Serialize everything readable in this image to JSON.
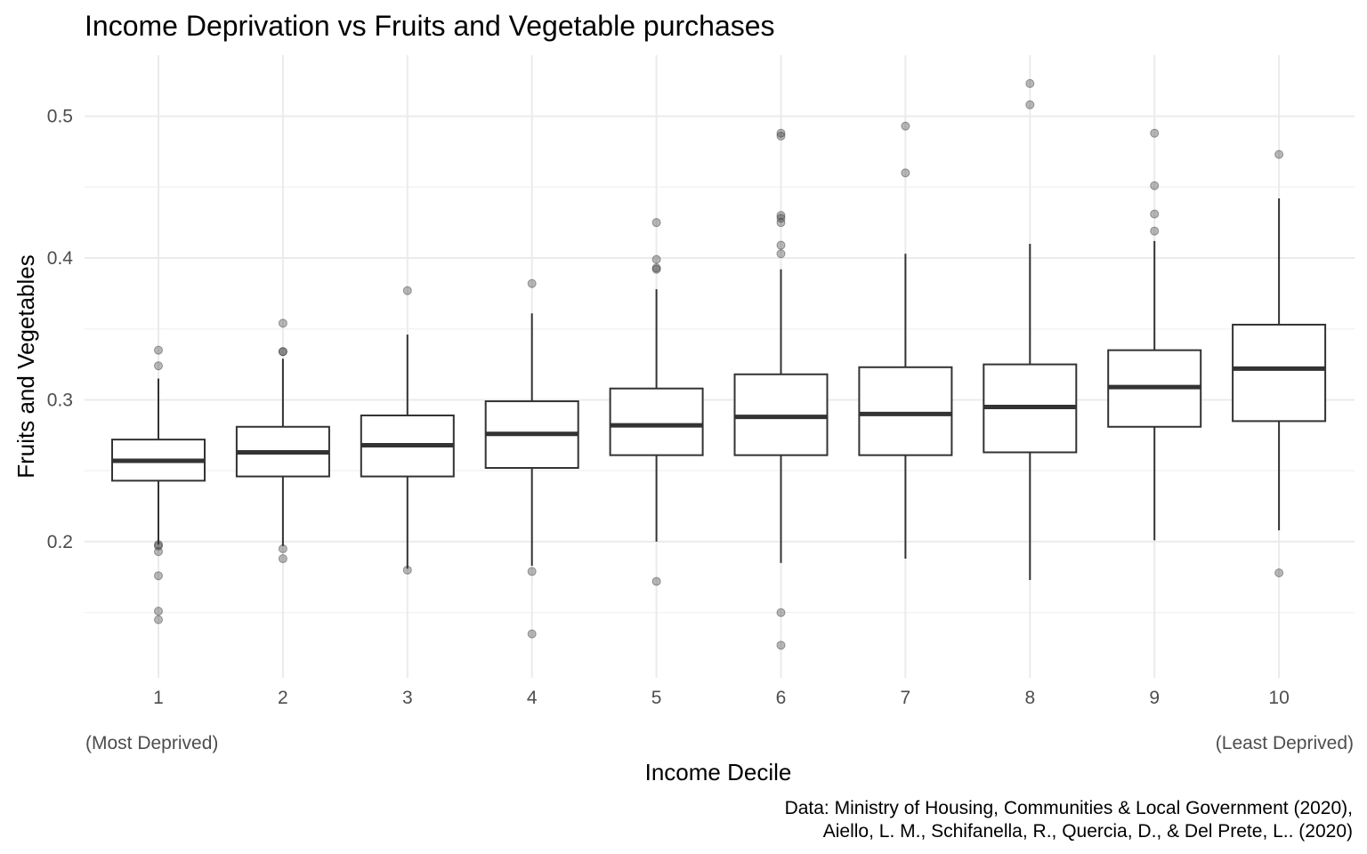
{
  "chart_data": {
    "type": "boxplot",
    "title": "Income Deprivation vs Fruits and Vegetable purchases",
    "xlabel": "Income Decile",
    "ylabel": "Fruits and Vegetables",
    "x_note_left": "(Most Deprived)",
    "x_note_right": "(Least Deprived)",
    "caption": [
      "Data: Ministry of Housing, Communities & Local Government (2020),",
      "Aiello, L. M., Schifanella, R., Quercia, D., & Del Prete, L.. (2020)"
    ],
    "ylim": [
      0.104,
      0.543
    ],
    "y_ticks": [
      0.2,
      0.3,
      0.4,
      0.5
    ],
    "y_tick_labels": [
      "0.2",
      "0.3",
      "0.4",
      "0.5"
    ],
    "y_minor_ticks": [
      0.15,
      0.25,
      0.35,
      0.45
    ],
    "grid": true,
    "categories": [
      "1",
      "2",
      "3",
      "4",
      "5",
      "6",
      "7",
      "8",
      "9",
      "10"
    ],
    "boxes": [
      {
        "category": "1",
        "whisker_low": 0.198,
        "q1": 0.243,
        "median": 0.257,
        "q3": 0.272,
        "whisker_high": 0.315,
        "outliers": [
          0.335,
          0.324,
          0.198,
          0.197,
          0.193,
          0.176,
          0.151,
          0.145
        ]
      },
      {
        "category": "2",
        "whisker_low": 0.197,
        "q1": 0.246,
        "median": 0.263,
        "q3": 0.281,
        "whisker_high": 0.329,
        "outliers": [
          0.354,
          0.334,
          0.334,
          0.195,
          0.188
        ]
      },
      {
        "category": "3",
        "whisker_low": 0.181,
        "q1": 0.246,
        "median": 0.268,
        "q3": 0.289,
        "whisker_high": 0.346,
        "outliers": [
          0.377,
          0.18
        ]
      },
      {
        "category": "4",
        "whisker_low": 0.183,
        "q1": 0.252,
        "median": 0.276,
        "q3": 0.299,
        "whisker_high": 0.361,
        "outliers": [
          0.382,
          0.179,
          0.135
        ]
      },
      {
        "category": "5",
        "whisker_low": 0.2,
        "q1": 0.261,
        "median": 0.282,
        "q3": 0.308,
        "whisker_high": 0.378,
        "outliers": [
          0.425,
          0.399,
          0.393,
          0.392,
          0.172
        ]
      },
      {
        "category": "6",
        "whisker_low": 0.185,
        "q1": 0.261,
        "median": 0.288,
        "q3": 0.318,
        "whisker_high": 0.392,
        "outliers": [
          0.488,
          0.486,
          0.43,
          0.428,
          0.425,
          0.409,
          0.403,
          0.15,
          0.127
        ]
      },
      {
        "category": "7",
        "whisker_low": 0.188,
        "q1": 0.261,
        "median": 0.29,
        "q3": 0.323,
        "whisker_high": 0.403,
        "outliers": [
          0.493,
          0.46
        ]
      },
      {
        "category": "8",
        "whisker_low": 0.173,
        "q1": 0.263,
        "median": 0.295,
        "q3": 0.325,
        "whisker_high": 0.41,
        "outliers": [
          0.523,
          0.508
        ]
      },
      {
        "category": "9",
        "whisker_low": 0.201,
        "q1": 0.281,
        "median": 0.309,
        "q3": 0.335,
        "whisker_high": 0.412,
        "outliers": [
          0.488,
          0.451,
          0.431,
          0.419
        ]
      },
      {
        "category": "10",
        "whisker_low": 0.208,
        "q1": 0.285,
        "median": 0.322,
        "q3": 0.353,
        "whisker_high": 0.442,
        "outliers": [
          0.473,
          0.178
        ]
      }
    ]
  }
}
